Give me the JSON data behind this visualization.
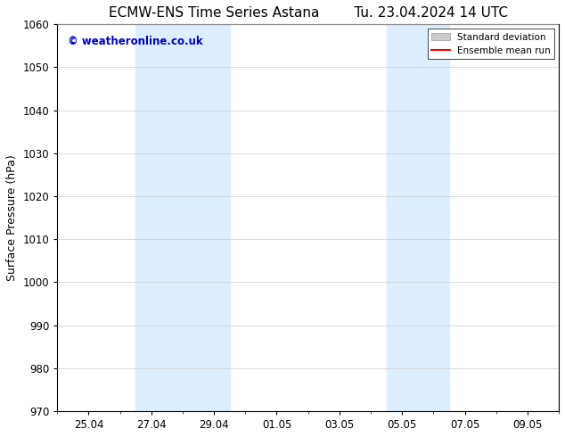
{
  "title_left": "ECMW-ENS Time Series Astana",
  "title_right": "Tu. 23.04.2024 14 UTC",
  "ylabel": "Surface Pressure (hPa)",
  "ylim": [
    970,
    1060
  ],
  "yticks": [
    970,
    980,
    990,
    1000,
    1010,
    1020,
    1030,
    1040,
    1050,
    1060
  ],
  "xtick_labels": [
    "25.04",
    "27.04",
    "29.04",
    "01.05",
    "03.05",
    "05.05",
    "07.05",
    "09.05"
  ],
  "xtick_positions": [
    2,
    4,
    6,
    8,
    10,
    12,
    14,
    16
  ],
  "xlim": [
    1,
    17
  ],
  "shade_regions": [
    {
      "start": 3.5,
      "end": 6.5
    },
    {
      "start": 11.5,
      "end": 13.5
    }
  ],
  "shade_color": "#ddeeff",
  "background_color": "#ffffff",
  "grid_color": "#cccccc",
  "watermark_text": "© weatheronline.co.uk",
  "watermark_color": "#0000cc",
  "legend_std_label": "Standard deviation",
  "legend_mean_label": "Ensemble mean run",
  "legend_std_color": "#cccccc",
  "legend_mean_color": "#ff0000",
  "title_fontsize": 11,
  "axis_fontsize": 9,
  "tick_fontsize": 8.5
}
